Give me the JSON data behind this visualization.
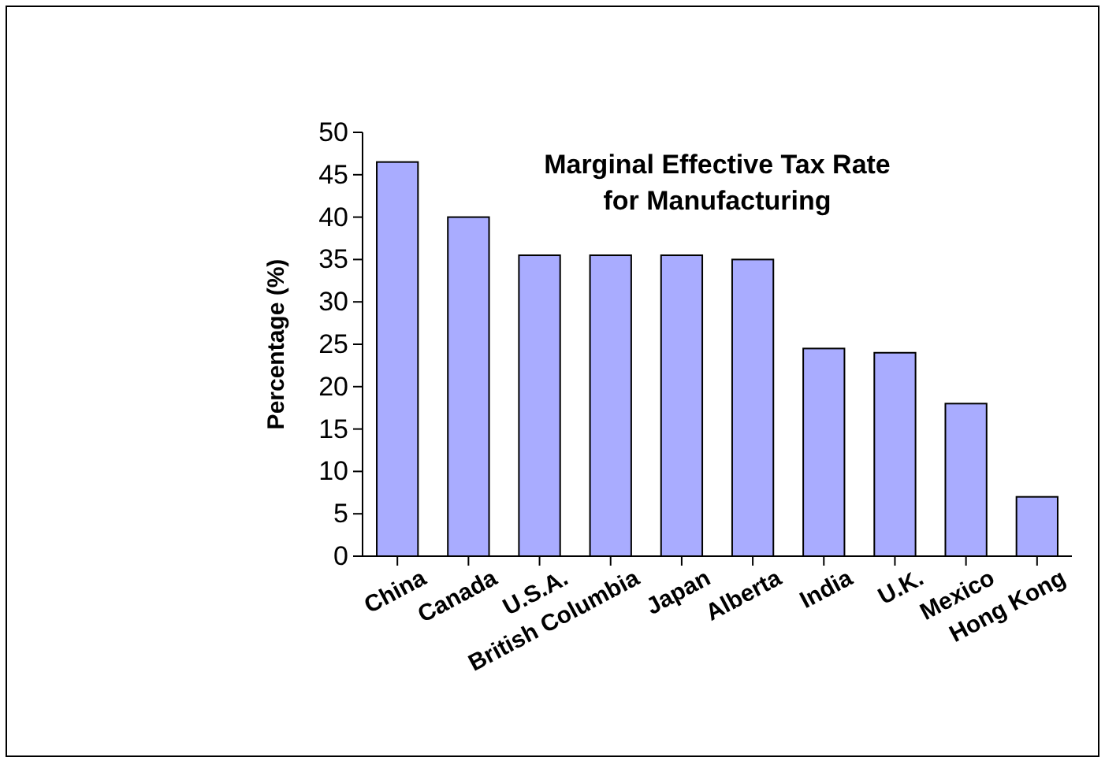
{
  "chart_data": {
    "type": "bar",
    "title": "Marginal Effective Tax Rate\nfor Manufacturing",
    "ylabel": "Percentage (%)",
    "categories": [
      "China",
      "Canada",
      "U.S.A.",
      "British Columbia",
      "Japan",
      "Alberta",
      "India",
      "U.K.",
      "Mexico",
      "Hong Kong"
    ],
    "values": [
      46.5,
      40,
      35.5,
      35.5,
      35.5,
      35,
      24.5,
      24,
      18,
      7
    ],
    "color": "#a9acff",
    "ylim": [
      0,
      50
    ],
    "yticks": [
      0,
      5,
      10,
      15,
      20,
      25,
      30,
      35,
      40,
      45,
      50
    ],
    "grid": false
  }
}
